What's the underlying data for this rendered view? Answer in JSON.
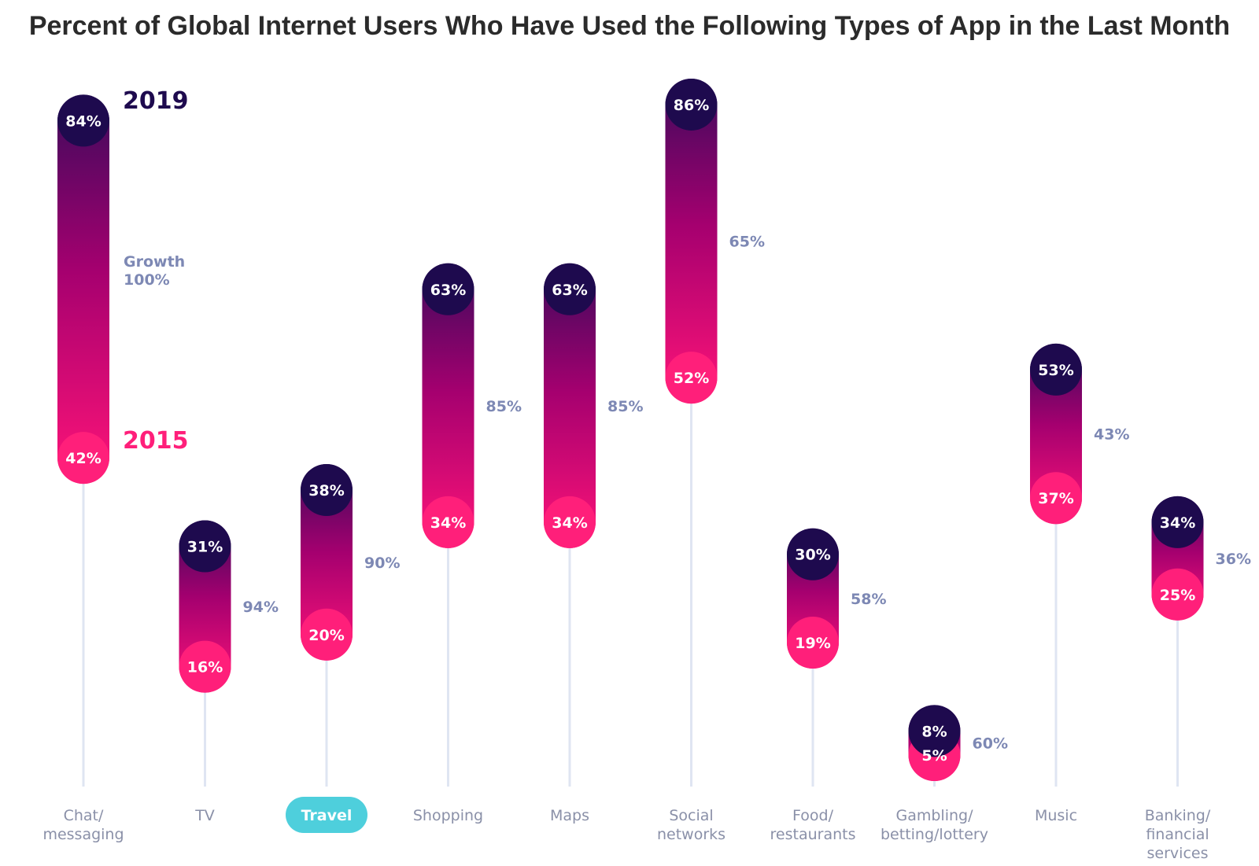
{
  "chart_data": {
    "type": "dumbbell",
    "title": "Percent of Global Internet Users Who Have Used the Following Types of App in the Last Month",
    "value_unit": "%",
    "ylim": [
      0,
      100
    ],
    "series": [
      {
        "name": "2015",
        "color": "#ff1f7a"
      },
      {
        "name": "2019",
        "color": "#1e0a4e"
      }
    ],
    "growth_label": "Growth",
    "highlight_category": "Travel",
    "highlight_color": "#4ecfdc",
    "categories": [
      {
        "label": [
          "Chat/",
          "messaging"
        ],
        "v2015": 42,
        "v2019": 84,
        "growth": 100,
        "label2015": "42%",
        "label2019": "84%",
        "growth_label": "100%"
      },
      {
        "label": [
          "TV"
        ],
        "v2015": 16,
        "v2019": 31,
        "growth": 94,
        "label2015": "16%",
        "label2019": "31%",
        "growth_label": "94%"
      },
      {
        "label": [
          "Travel"
        ],
        "v2015": 20,
        "v2019": 38,
        "growth": 90,
        "label2015": "20%",
        "label2019": "38%",
        "growth_label": "90%"
      },
      {
        "label": [
          "Shopping"
        ],
        "v2015": 34,
        "v2019": 63,
        "growth": 85,
        "label2015": "34%",
        "label2019": "63%",
        "growth_label": "85%"
      },
      {
        "label": [
          "Maps"
        ],
        "v2015": 34,
        "v2019": 63,
        "growth": 85,
        "label2015": "34%",
        "label2019": "63%",
        "growth_label": "85%"
      },
      {
        "label": [
          "Social",
          "networks"
        ],
        "v2015": 52,
        "v2019": 86,
        "growth": 65,
        "label2015": "52%",
        "label2019": "86%",
        "growth_label": "65%"
      },
      {
        "label": [
          "Food/",
          "restaurants"
        ],
        "v2015": 19,
        "v2019": 30,
        "growth": 58,
        "label2015": "19%",
        "label2019": "30%",
        "growth_label": "58%"
      },
      {
        "label": [
          "Gambling/",
          "betting/lottery"
        ],
        "v2015": 5,
        "v2019": 8,
        "growth": 60,
        "label2015": "5%",
        "label2019": "8%",
        "growth_label": "60%"
      },
      {
        "label": [
          "Music"
        ],
        "v2015": 37,
        "v2019": 53,
        "growth": 43,
        "label2015": "37%",
        "label2019": "53%",
        "growth_label": "43%"
      },
      {
        "label": [
          "Banking/",
          "financial",
          "services"
        ],
        "v2015": 25,
        "v2019": 34,
        "growth": 36,
        "label2015": "25%",
        "label2019": "34%",
        "growth_label": "36%"
      }
    ]
  }
}
